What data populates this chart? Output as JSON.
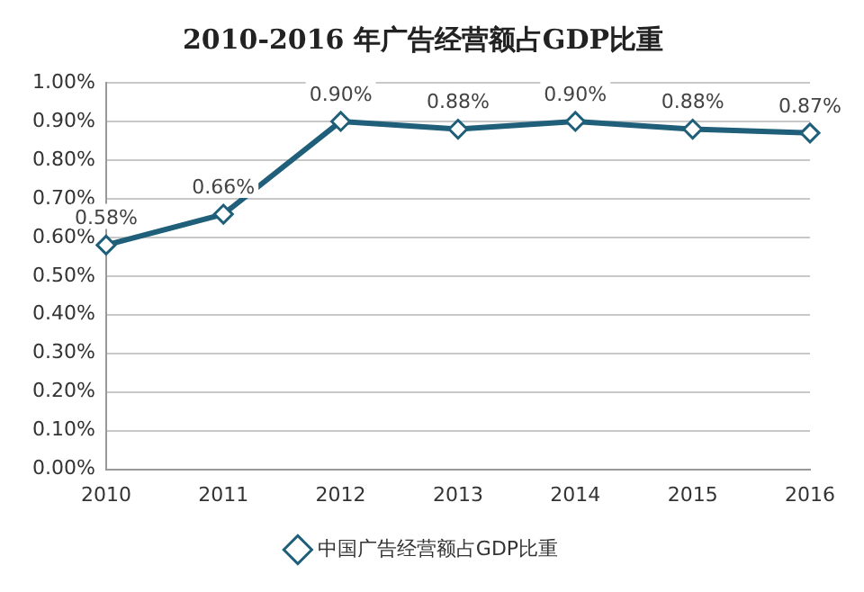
{
  "chart_data": {
    "type": "line",
    "title": "2010-2016 年广告经营额占GDP比重",
    "categories": [
      "2010",
      "2011",
      "2012",
      "2013",
      "2014",
      "2015",
      "2016"
    ],
    "series": [
      {
        "name": "中国广告经营额占GDP比重",
        "color": "#1f5f7a",
        "values": [
          0.58,
          0.66,
          0.9,
          0.88,
          0.9,
          0.88,
          0.87
        ],
        "value_labels": [
          "0.58%",
          "0.66%",
          "0.90%",
          "0.88%",
          "0.90%",
          "0.88%",
          "0.87%"
        ]
      }
    ],
    "ylim": [
      0,
      1.0
    ],
    "yticks": [
      {
        "value": 0,
        "label": "0.00%"
      },
      {
        "value": 0.1,
        "label": "0.10%"
      },
      {
        "value": 0.2,
        "label": "0.20%"
      },
      {
        "value": 0.3,
        "label": "0.30%"
      },
      {
        "value": 0.4,
        "label": "0.40%"
      },
      {
        "value": 0.5,
        "label": "0.50%"
      },
      {
        "value": 0.6,
        "label": "0.60%"
      },
      {
        "value": 0.7,
        "label": "0.70%"
      },
      {
        "value": 0.8,
        "label": "0.80%"
      },
      {
        "value": 0.9,
        "label": "0.90%"
      },
      {
        "value": 1.0,
        "label": "1.00%"
      }
    ],
    "grid": "y",
    "legend": "bottom",
    "marker": "diamond",
    "line_style": "solid"
  }
}
